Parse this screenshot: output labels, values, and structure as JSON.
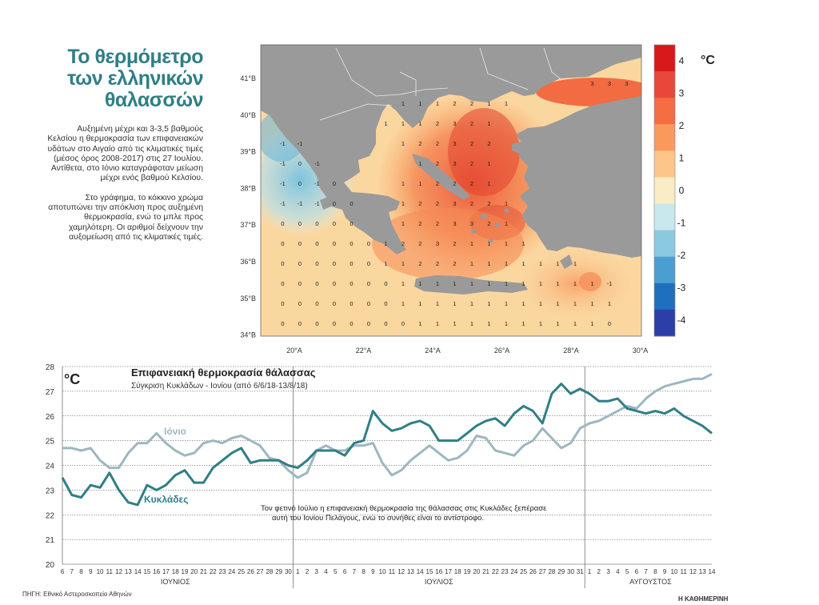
{
  "title_lines": [
    "Το θερμόμετρο",
    "των ελληνικών",
    "θαλασσών"
  ],
  "description": [
    "Αυξημένη μέχρι και 3-3,5 βαθμούς Κελσίου η θερμοκρασία των επιφανειακών υδάτων στο Αιγαίο από τις κλιματικές τιμές (μέσος όρος 2008-2017) στις 27 Ιουλίου. Αντίθετα, στο Ιόνιο καταγράφοταν μείωση μέχρι ενός βαθμού Κελσίου.",
    "Στο γράφημα, το κόκκινο χρώμα αποτυπώνει την απόκλιση προς αυξημένη θερμοκρασία, ενώ το μπλε προς χαμηλότερη. Οι αριθμοί δείχνουν την αυξομείωση από τις κλιματικές τιμές."
  ],
  "map": {
    "lat_labels": [
      "41°B",
      "40°B",
      "39°B",
      "38°B",
      "37°B",
      "36°B",
      "35°B",
      "34°B"
    ],
    "lon_labels": [
      "20°A",
      "22°A",
      "24°A",
      "26°A",
      "28°A",
      "30°A"
    ],
    "colorbar_unit": "°C",
    "colorbar_ticks": [
      "4",
      "3",
      "2",
      "1",
      "0",
      "-1",
      "-2",
      "-3",
      "-4"
    ],
    "colorbar_colors": [
      "#d7191c",
      "#e9473a",
      "#f46d43",
      "#f99a5c",
      "#fdc58a",
      "#faecc4",
      "#c9e8ee",
      "#8bc9e0",
      "#4a9fd0",
      "#1e6fbd",
      "#2c3fa8"
    ],
    "land_color": "#9a9a9a",
    "sea_base_color": "#fbd7a0"
  },
  "chart_data": {
    "type": "line",
    "title": "Επιφανειακή θερμοκρασία θάλασσας",
    "subtitle": "Σύγκριση Κυκλάδων - Ιονίου (από 6/6/18-13/8/18)",
    "ylabel": "°C",
    "ylim": [
      20,
      28
    ],
    "yticks": [
      "20",
      "21",
      "22",
      "23",
      "24",
      "25",
      "26",
      "27",
      "28"
    ],
    "x_day_labels": [
      "6",
      "7",
      "8",
      "9",
      "10",
      "11",
      "12",
      "13",
      "14",
      "15",
      "16",
      "17",
      "18",
      "19",
      "20",
      "21",
      "22",
      "23",
      "24",
      "25",
      "26",
      "27",
      "28",
      "29",
      "30",
      "1",
      "2",
      "3",
      "4",
      "5",
      "6",
      "7",
      "8",
      "9",
      "10",
      "11",
      "12",
      "13",
      "14",
      "15",
      "16",
      "17",
      "18",
      "19",
      "20",
      "21",
      "22",
      "23",
      "24",
      "25",
      "26",
      "27",
      "28",
      "29",
      "30",
      "31",
      "1",
      "2",
      "3",
      "4",
      "5",
      "6",
      "7",
      "8",
      "9",
      "10",
      "11",
      "12",
      "13",
      "14"
    ],
    "month_labels": [
      "ΙΟΥΝΙΟΣ",
      "ΙΟΥΛΙΟΣ",
      "ΑΥΓΟΥΣΤΟΣ"
    ],
    "series": [
      {
        "name": "Ιόνιο",
        "color": "#9db7c1",
        "values": [
          24.7,
          24.7,
          24.6,
          24.7,
          24.2,
          23.9,
          23.9,
          24.5,
          24.9,
          24.9,
          25.3,
          24.9,
          24.6,
          24.4,
          24.5,
          24.9,
          25.0,
          24.9,
          25.1,
          25.2,
          25.0,
          24.8,
          24.3,
          24.2,
          23.8,
          23.5,
          23.7,
          24.6,
          24.8,
          24.6,
          24.6,
          24.8,
          24.8,
          24.9,
          24.1,
          23.6,
          23.8,
          24.2,
          24.5,
          24.8,
          24.5,
          24.2,
          24.3,
          24.6,
          25.2,
          25.1,
          24.6,
          24.5,
          24.4,
          24.8,
          25.0,
          25.5,
          25.1,
          24.7,
          24.9,
          25.5,
          25.7,
          25.8,
          26.0,
          26.2,
          26.4,
          26.3,
          26.7,
          27.0,
          27.2,
          27.3,
          27.4,
          27.5,
          27.5,
          27.7
        ]
      },
      {
        "name": "Κυκλάδες",
        "color": "#2f7f86",
        "values": [
          23.5,
          22.8,
          22.7,
          23.2,
          23.1,
          23.7,
          23.0,
          22.5,
          22.4,
          23.2,
          23.0,
          23.2,
          23.6,
          23.8,
          23.3,
          23.3,
          23.9,
          24.2,
          24.5,
          24.7,
          24.1,
          24.2,
          24.2,
          24.2,
          24.0,
          23.9,
          24.2,
          24.6,
          24.6,
          24.6,
          24.4,
          24.9,
          25.0,
          26.2,
          25.7,
          25.4,
          25.5,
          25.7,
          25.8,
          25.6,
          25.0,
          25.0,
          25.0,
          25.3,
          25.6,
          25.8,
          25.9,
          25.6,
          26.1,
          26.4,
          26.2,
          25.7,
          26.9,
          27.3,
          26.9,
          27.1,
          26.9,
          26.6,
          26.6,
          26.7,
          26.3,
          26.2,
          26.1,
          26.2,
          26.1,
          26.3,
          26.0,
          25.8,
          25.6,
          25.3
        ]
      }
    ],
    "series_labels": [
      "Ιόνιο",
      "Κυκλάδες"
    ],
    "annotation": [
      "Τον φετινό Ιούλιο η επιφανειακή θερμοκρασία της θάλασσας στις Κυκλάδες ξεπέρασε",
      "αυτή του Ιονίου Πελάγους, ενώ το συνήθες είναι το αντίστροφο."
    ]
  },
  "footer": {
    "source": "ΠΗΓΗ: Εθνικό Αστεροσκοπείο Αθηνών",
    "publisher": "Η ΚΑΘΗΜΕΡΙΝΗ"
  }
}
